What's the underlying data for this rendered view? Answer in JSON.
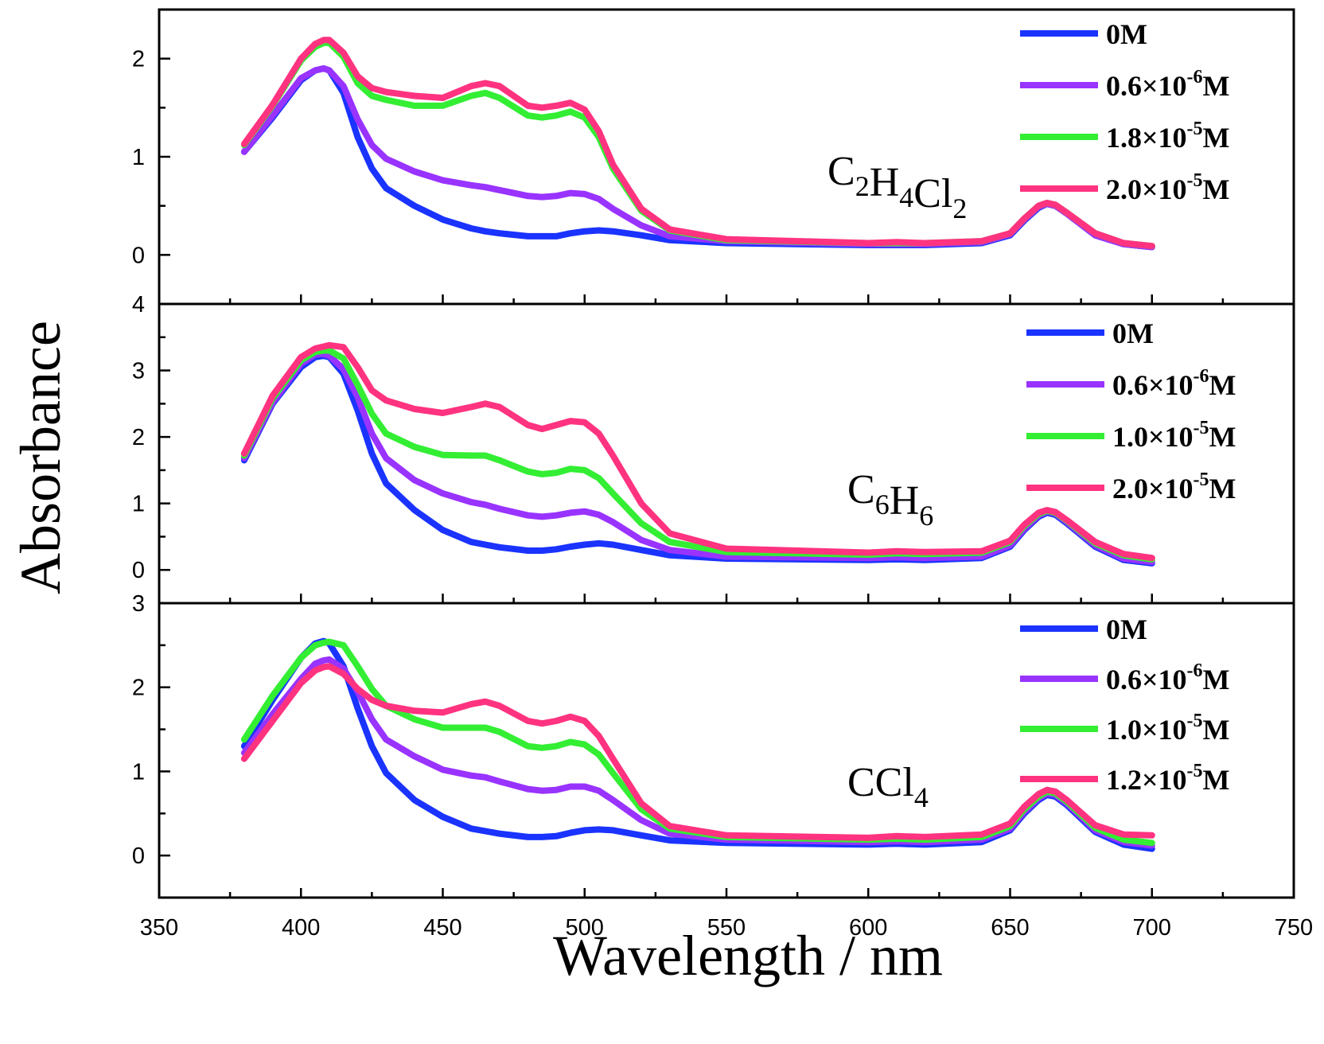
{
  "chart_data": {
    "type": "line",
    "title": "",
    "xlabel": "Wavelength / nm",
    "ylabel": "Absorbance",
    "xlim": [
      350,
      750
    ],
    "xticks": [
      350,
      400,
      450,
      500,
      550,
      600,
      650,
      700,
      750
    ],
    "x": [
      380,
      390,
      400,
      405,
      408,
      410,
      415,
      420,
      425,
      430,
      440,
      450,
      460,
      465,
      470,
      480,
      485,
      490,
      495,
      500,
      505,
      510,
      520,
      530,
      550,
      600,
      610,
      620,
      640,
      650,
      655,
      660,
      663,
      666,
      670,
      680,
      690,
      700
    ],
    "panels": [
      {
        "solvent": {
          "base": "C",
          "parts": [
            {
              "sub": "2"
            },
            {
              "text": "H"
            },
            {
              "sub": "4"
            },
            {
              "text": "Cl"
            },
            {
              "sub": "2"
            }
          ]
        },
        "solvent_text": "C2H4Cl2",
        "ylim": [
          -0.5,
          2.5
        ],
        "yticks": [
          0,
          1,
          2
        ],
        "series": [
          {
            "name": "0M",
            "color": "#1a33ff",
            "values": [
              1.05,
              1.4,
              1.78,
              1.88,
              1.9,
              1.88,
              1.65,
              1.2,
              0.88,
              0.68,
              0.5,
              0.36,
              0.27,
              0.24,
              0.22,
              0.19,
              0.19,
              0.19,
              0.22,
              0.24,
              0.25,
              0.24,
              0.2,
              0.15,
              0.12,
              0.1,
              0.1,
              0.1,
              0.12,
              0.2,
              0.35,
              0.48,
              0.52,
              0.5,
              0.42,
              0.2,
              0.11,
              0.08
            ]
          },
          {
            "name": "0.6×10-6M",
            "name_parts": [
              "0.6×10",
              "-6",
              "M"
            ],
            "color": "#9933ff",
            "values": [
              1.05,
              1.42,
              1.8,
              1.88,
              1.9,
              1.88,
              1.72,
              1.38,
              1.12,
              0.98,
              0.85,
              0.76,
              0.71,
              0.69,
              0.66,
              0.6,
              0.59,
              0.6,
              0.63,
              0.62,
              0.57,
              0.47,
              0.3,
              0.19,
              0.14,
              0.11,
              0.11,
              0.11,
              0.13,
              0.21,
              0.36,
              0.49,
              0.52,
              0.5,
              0.42,
              0.2,
              0.11,
              0.08
            ]
          },
          {
            "name": "1.8×10-5M",
            "name_parts": [
              "1.8×10",
              "-5",
              "M"
            ],
            "color": "#33ee33",
            "values": [
              1.12,
              1.52,
              1.98,
              2.12,
              2.16,
              2.16,
              2.02,
              1.75,
              1.62,
              1.58,
              1.52,
              1.52,
              1.62,
              1.65,
              1.6,
              1.42,
              1.4,
              1.42,
              1.46,
              1.4,
              1.2,
              0.88,
              0.45,
              0.25,
              0.15,
              0.12,
              0.12,
              0.12,
              0.14,
              0.22,
              0.37,
              0.5,
              0.53,
              0.51,
              0.43,
              0.22,
              0.12,
              0.09
            ]
          },
          {
            "name": "2.0×10-5M",
            "name_parts": [
              "2.0×10",
              "-5",
              "M"
            ],
            "color": "#ff3380",
            "values": [
              1.13,
              1.53,
              2.0,
              2.15,
              2.19,
              2.19,
              2.06,
              1.82,
              1.7,
              1.66,
              1.62,
              1.6,
              1.72,
              1.75,
              1.72,
              1.52,
              1.5,
              1.52,
              1.55,
              1.48,
              1.26,
              0.92,
              0.47,
              0.26,
              0.16,
              0.12,
              0.13,
              0.12,
              0.14,
              0.22,
              0.37,
              0.5,
              0.53,
              0.51,
              0.43,
              0.22,
              0.12,
              0.09
            ]
          }
        ]
      },
      {
        "solvent": {
          "base": "C",
          "parts": [
            {
              "sub": "6"
            },
            {
              "text": "H"
            },
            {
              "sub": "6"
            }
          ]
        },
        "solvent_text": "C6H6",
        "ylim": [
          -0.5,
          4
        ],
        "yticks": [
          0,
          1,
          2,
          3,
          4
        ],
        "series": [
          {
            "name": "0M",
            "color": "#1a33ff",
            "values": [
              1.65,
              2.5,
              3.05,
              3.2,
              3.22,
              3.2,
              2.95,
              2.4,
              1.75,
              1.3,
              0.9,
              0.6,
              0.42,
              0.38,
              0.34,
              0.29,
              0.29,
              0.31,
              0.35,
              0.38,
              0.4,
              0.38,
              0.3,
              0.22,
              0.17,
              0.15,
              0.16,
              0.15,
              0.18,
              0.35,
              0.6,
              0.8,
              0.86,
              0.83,
              0.7,
              0.35,
              0.15,
              0.1
            ]
          },
          {
            "name": "0.6×10-6M",
            "name_parts": [
              "0.6×10",
              "-6",
              "M"
            ],
            "color": "#9933ff",
            "values": [
              1.68,
              2.52,
              3.1,
              3.24,
              3.25,
              3.22,
              3.02,
              2.6,
              2.05,
              1.68,
              1.35,
              1.15,
              1.02,
              0.98,
              0.92,
              0.82,
              0.8,
              0.82,
              0.86,
              0.88,
              0.83,
              0.72,
              0.45,
              0.3,
              0.2,
              0.18,
              0.19,
              0.18,
              0.2,
              0.37,
              0.62,
              0.82,
              0.88,
              0.85,
              0.72,
              0.37,
              0.17,
              0.12
            ]
          },
          {
            "name": "1.0×10-5M",
            "name_parts": [
              "1.0×10",
              "-5",
              "M"
            ],
            "color": "#33ee33",
            "values": [
              1.72,
              2.58,
              3.15,
              3.28,
              3.3,
              3.3,
              3.18,
              2.78,
              2.35,
              2.05,
              1.85,
              1.73,
              1.72,
              1.72,
              1.65,
              1.48,
              1.44,
              1.46,
              1.52,
              1.5,
              1.38,
              1.15,
              0.7,
              0.42,
              0.27,
              0.23,
              0.25,
              0.24,
              0.26,
              0.42,
              0.66,
              0.84,
              0.89,
              0.86,
              0.74,
              0.4,
              0.22,
              0.16
            ]
          },
          {
            "name": "2.0×10-5M",
            "name_parts": [
              "2.0×10",
              "-5",
              "M"
            ],
            "color": "#ff3380",
            "values": [
              1.75,
              2.62,
              3.2,
              3.33,
              3.36,
              3.38,
              3.35,
              3.05,
              2.7,
              2.55,
              2.42,
              2.36,
              2.45,
              2.5,
              2.45,
              2.18,
              2.12,
              2.18,
              2.24,
              2.22,
              2.05,
              1.72,
              1.0,
              0.55,
              0.32,
              0.26,
              0.28,
              0.27,
              0.28,
              0.44,
              0.68,
              0.86,
              0.9,
              0.87,
              0.75,
              0.42,
              0.24,
              0.18
            ]
          }
        ]
      },
      {
        "solvent": {
          "base": "CCl",
          "parts": [
            {
              "sub": "4"
            }
          ]
        },
        "solvent_text": "CCl4",
        "ylim": [
          -0.5,
          3
        ],
        "yticks": [
          0,
          1,
          2,
          3
        ],
        "series": [
          {
            "name": "0M",
            "color": "#1a33ff",
            "values": [
              1.3,
              1.85,
              2.35,
              2.52,
              2.55,
              2.52,
              2.25,
              1.75,
              1.3,
              0.98,
              0.66,
              0.46,
              0.32,
              0.29,
              0.26,
              0.22,
              0.22,
              0.23,
              0.27,
              0.3,
              0.31,
              0.3,
              0.24,
              0.18,
              0.15,
              0.13,
              0.14,
              0.13,
              0.16,
              0.3,
              0.5,
              0.66,
              0.72,
              0.7,
              0.6,
              0.28,
              0.13,
              0.08
            ]
          },
          {
            "name": "0.6×10-6M",
            "name_parts": [
              "0.6×10",
              "-6",
              "M"
            ],
            "color": "#9933ff",
            "values": [
              1.22,
              1.68,
              2.1,
              2.28,
              2.32,
              2.33,
              2.22,
              1.95,
              1.62,
              1.38,
              1.18,
              1.02,
              0.95,
              0.93,
              0.88,
              0.79,
              0.77,
              0.78,
              0.82,
              0.82,
              0.77,
              0.66,
              0.42,
              0.26,
              0.19,
              0.16,
              0.17,
              0.16,
              0.19,
              0.32,
              0.52,
              0.68,
              0.74,
              0.72,
              0.62,
              0.3,
              0.16,
              0.12
            ]
          },
          {
            "name": "1.0×10-5M",
            "name_parts": [
              "1.0×10",
              "-5",
              "M"
            ],
            "color": "#33ee33",
            "values": [
              1.38,
              1.9,
              2.35,
              2.5,
              2.53,
              2.54,
              2.5,
              2.25,
              1.98,
              1.78,
              1.62,
              1.52,
              1.52,
              1.52,
              1.47,
              1.3,
              1.28,
              1.3,
              1.35,
              1.32,
              1.2,
              0.98,
              0.55,
              0.32,
              0.22,
              0.19,
              0.2,
              0.19,
              0.22,
              0.35,
              0.55,
              0.7,
              0.76,
              0.74,
              0.64,
              0.33,
              0.19,
              0.15
            ]
          },
          {
            "name": "1.2×10-5M",
            "name_parts": [
              "1.2×10",
              "-5",
              "M"
            ],
            "color": "#ff3380",
            "values": [
              1.15,
              1.6,
              2.05,
              2.2,
              2.24,
              2.25,
              2.16,
              1.98,
              1.85,
              1.78,
              1.72,
              1.7,
              1.8,
              1.83,
              1.78,
              1.6,
              1.57,
              1.6,
              1.65,
              1.6,
              1.42,
              1.15,
              0.62,
              0.35,
              0.24,
              0.21,
              0.23,
              0.22,
              0.25,
              0.38,
              0.58,
              0.73,
              0.78,
              0.76,
              0.66,
              0.36,
              0.25,
              0.24
            ]
          }
        ]
      }
    ]
  }
}
